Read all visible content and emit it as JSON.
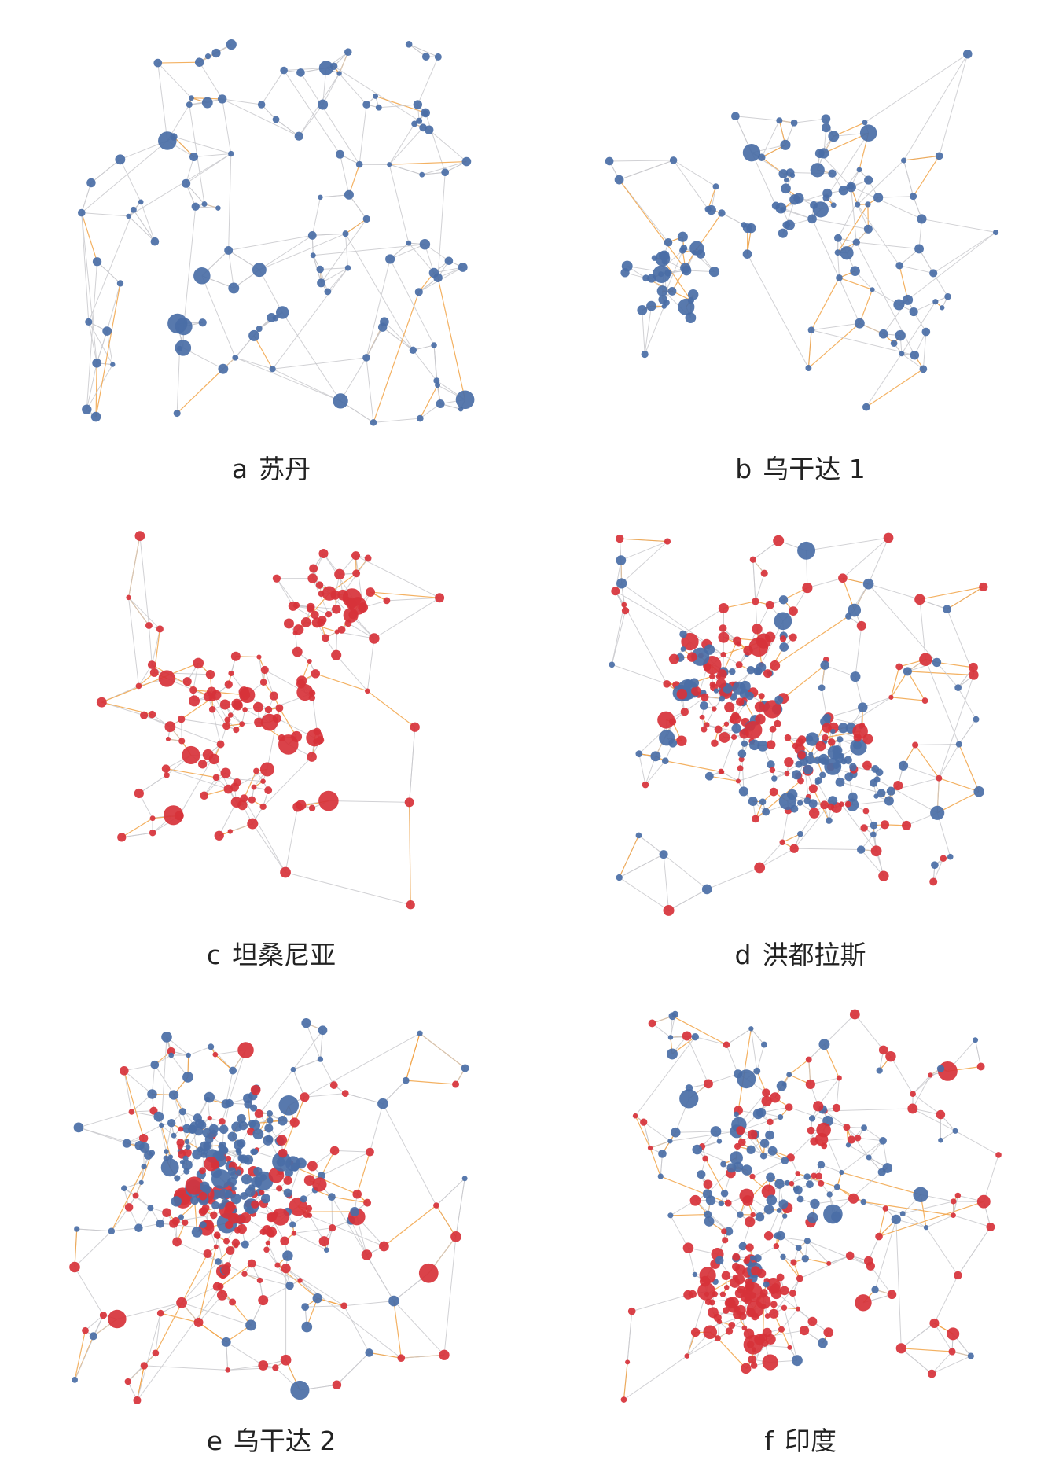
{
  "colors": {
    "node_blue": "#4a6ea6",
    "node_red": "#d7323a",
    "edge_gray": "#c9c9cd",
    "edge_orange": "#f2a447"
  },
  "panels": [
    {
      "letter": "a",
      "name": "苏丹"
    },
    {
      "letter": "b",
      "name": "乌干达 1"
    },
    {
      "letter": "c",
      "name": "坦桑尼亚"
    },
    {
      "letter": "d",
      "name": "洪都拉斯"
    },
    {
      "letter": "e",
      "name": "乌干达 2"
    },
    {
      "letter": "f",
      "name": "印度"
    }
  ]
}
